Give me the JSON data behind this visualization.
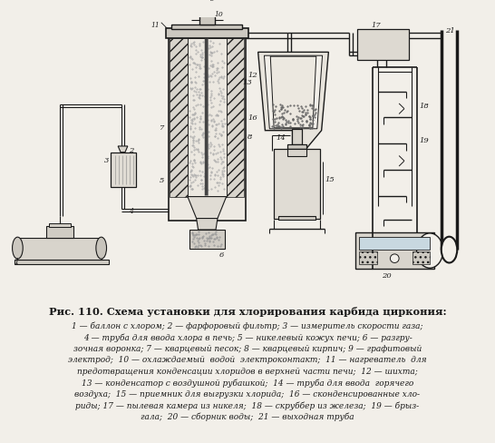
{
  "title": "Рис. 110. Схема установки для хлорирования карбида циркония:",
  "caption_lines": [
    "1 — баллон с хлором; 2 — фарфоровый фильтр; 3 — измеритель скорости газа;",
    "4 — труба для ввода хлора в печь; 5 — никелевый кожух печи; 6 — разгру-",
    "зочная воронка; 7 — кварцевый песок; 8 — кварцевый кирпич; 9 — графитовый",
    "электрод;  10 — охлаждаемый  водой  электроконтакт;  11 — нагреватель  для",
    "предотвращения конденсации хлоридов в верхней части печи;  12 — шихта;",
    "13 — конденсатор с воздушной рубашкой;  14 — труба для ввода  горячего",
    "воздуха;  15 — приемник для выгрузки хлорида;  16 — сконденсированные хло-",
    "риды; 17 — пылевая камера из никеля;  18 — скруббер из железа;  19 — брыз-",
    "гала;  20 — сборник воды;  21 — выходная труба"
  ],
  "bg_color": "#f2efe9",
  "fg_color": "#1a1a1a"
}
